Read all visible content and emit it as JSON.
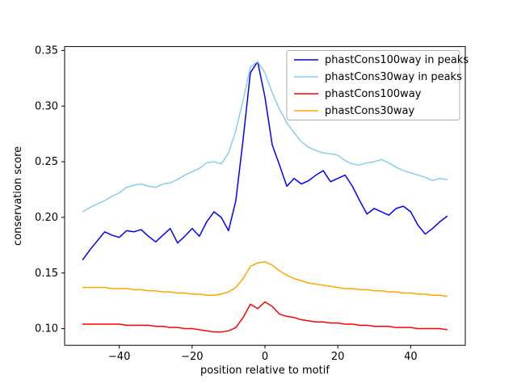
{
  "figure": {
    "background": "#ffffff"
  },
  "chart_data": {
    "type": "line",
    "title": "",
    "xlabel": "position relative to motif",
    "ylabel": "conservation score",
    "xlim": [
      -55,
      55
    ],
    "ylim": [
      0.085,
      0.3535
    ],
    "xticks": [
      -40,
      -20,
      0,
      20,
      40
    ],
    "xtick_labels": [
      "−40",
      "−20",
      "0",
      "20",
      "40"
    ],
    "yticks": [
      0.1,
      0.15,
      0.2,
      0.25,
      0.3,
      0.35
    ],
    "ytick_labels": [
      "0.10",
      "0.15",
      "0.20",
      "0.25",
      "0.30",
      "0.35"
    ],
    "grid": false,
    "legend_position": "upper right",
    "x": [
      -50,
      -48,
      -46,
      -44,
      -42,
      -40,
      -38,
      -36,
      -34,
      -32,
      -30,
      -28,
      -26,
      -24,
      -22,
      -20,
      -18,
      -16,
      -14,
      -12,
      -10,
      -8,
      -6,
      -4,
      -2,
      0,
      2,
      4,
      6,
      8,
      10,
      12,
      14,
      16,
      18,
      20,
      22,
      24,
      26,
      28,
      30,
      32,
      34,
      36,
      38,
      40,
      42,
      44,
      46,
      48,
      50
    ],
    "series": [
      {
        "name": "phastCons100way in peaks",
        "color": "#0000ff",
        "values": [
          0.162,
          0.171,
          0.179,
          0.187,
          0.184,
          0.182,
          0.188,
          0.187,
          0.189,
          0.183,
          0.178,
          0.184,
          0.19,
          0.177,
          0.183,
          0.19,
          0.183,
          0.196,
          0.205,
          0.2,
          0.188,
          0.215,
          0.27,
          0.33,
          0.34,
          0.308,
          0.265,
          0.247,
          0.228,
          0.235,
          0.23,
          0.233,
          0.238,
          0.242,
          0.232,
          0.235,
          0.238,
          0.228,
          0.215,
          0.203,
          0.208,
          0.205,
          0.202,
          0.208,
          0.21,
          0.205,
          0.193,
          0.185,
          0.19,
          0.196,
          0.201
        ]
      },
      {
        "name": "phastCons30way in peaks",
        "color": "#87ceeb",
        "values": [
          0.205,
          0.209,
          0.212,
          0.215,
          0.219,
          0.222,
          0.227,
          0.229,
          0.23,
          0.228,
          0.227,
          0.23,
          0.231,
          0.234,
          0.238,
          0.241,
          0.244,
          0.249,
          0.25,
          0.248,
          0.258,
          0.278,
          0.305,
          0.335,
          0.34,
          0.33,
          0.312,
          0.297,
          0.285,
          0.276,
          0.268,
          0.263,
          0.26,
          0.258,
          0.257,
          0.256,
          0.251,
          0.248,
          0.247,
          0.249,
          0.25,
          0.252,
          0.249,
          0.245,
          0.242,
          0.24,
          0.238,
          0.236,
          0.233,
          0.235,
          0.234
        ]
      },
      {
        "name": "phastCons100way",
        "color": "#ff0000",
        "values": [
          0.104,
          0.104,
          0.104,
          0.104,
          0.104,
          0.104,
          0.103,
          0.103,
          0.103,
          0.103,
          0.102,
          0.102,
          0.101,
          0.101,
          0.1,
          0.1,
          0.099,
          0.098,
          0.097,
          0.097,
          0.098,
          0.101,
          0.11,
          0.122,
          0.118,
          0.124,
          0.12,
          0.113,
          0.111,
          0.11,
          0.108,
          0.107,
          0.106,
          0.106,
          0.105,
          0.105,
          0.104,
          0.104,
          0.103,
          0.103,
          0.102,
          0.102,
          0.102,
          0.101,
          0.101,
          0.101,
          0.1,
          0.1,
          0.1,
          0.1,
          0.099
        ]
      },
      {
        "name": "phastCons30way",
        "color": "#ffa500",
        "values": [
          0.137,
          0.137,
          0.137,
          0.137,
          0.136,
          0.136,
          0.136,
          0.135,
          0.135,
          0.134,
          0.134,
          0.133,
          0.133,
          0.132,
          0.132,
          0.131,
          0.131,
          0.13,
          0.13,
          0.131,
          0.133,
          0.137,
          0.145,
          0.156,
          0.159,
          0.16,
          0.157,
          0.152,
          0.148,
          0.145,
          0.143,
          0.141,
          0.14,
          0.139,
          0.138,
          0.137,
          0.136,
          0.136,
          0.135,
          0.135,
          0.134,
          0.134,
          0.133,
          0.133,
          0.132,
          0.132,
          0.131,
          0.131,
          0.13,
          0.13,
          0.129
        ]
      }
    ]
  }
}
